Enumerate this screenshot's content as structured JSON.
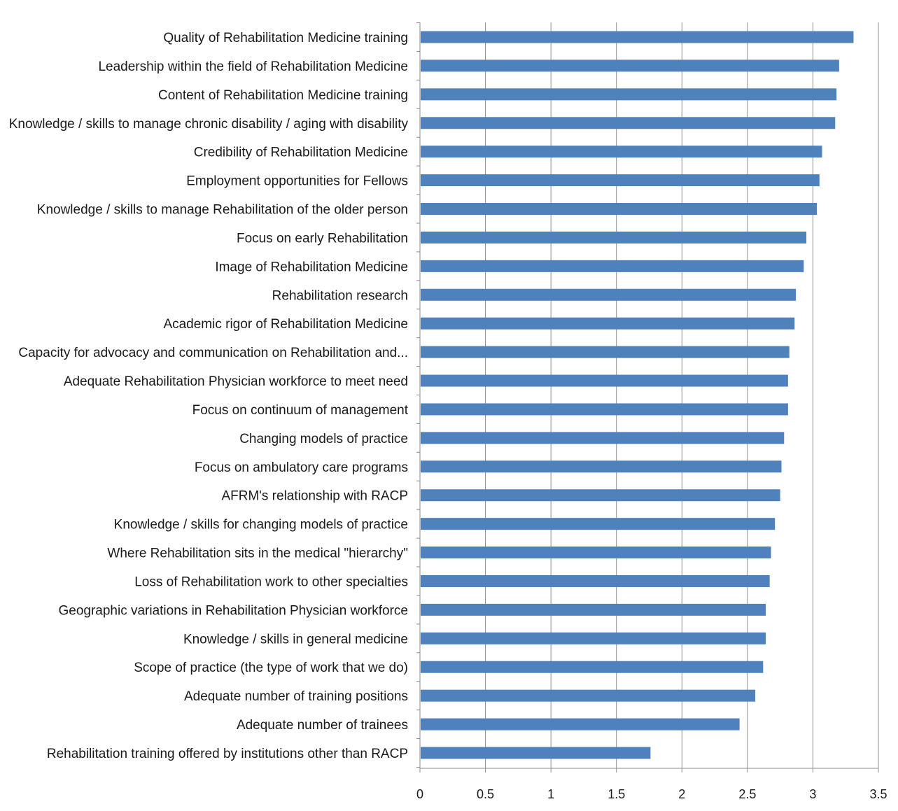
{
  "chart_data": {
    "type": "bar",
    "orientation": "horizontal",
    "title": "",
    "xlabel": "",
    "ylabel": "",
    "xlim": [
      0,
      3.5
    ],
    "x_ticks": [
      "0",
      "0.5",
      "1",
      "1.5",
      "2",
      "2.5",
      "3",
      "3.5"
    ],
    "grid": true,
    "legend": "none",
    "bar_color": "#4F81BD",
    "categories": [
      "Quality of Rehabilitation Medicine training",
      "Leadership within the field of Rehabilitation Medicine",
      "Content of Rehabilitation Medicine training",
      "Knowledge / skills to manage chronic disability / aging with disability",
      "Credibility of Rehabilitation Medicine",
      "Employment opportunities for Fellows",
      "Knowledge / skills to manage Rehabilitation of the older person",
      "Focus on early Rehabilitation",
      "Image of Rehabilitation Medicine",
      "Rehabilitation research",
      "Academic rigor of Rehabilitation Medicine",
      "Capacity for advocacy and communication on Rehabilitation and...",
      "Adequate Rehabilitation Physician workforce to meet need",
      "Focus on continuum of management",
      "Changing models of practice",
      "Focus on ambulatory care programs",
      "AFRM's relationship with RACP",
      "Knowledge / skills for changing models of practice",
      "Where Rehabilitation sits in the medical \"hierarchy\"",
      "Loss of Rehabilitation work to other specialties",
      "Geographic variations in Rehabilitation Physician workforce",
      "Knowledge / skills in general medicine",
      "Scope of practice (the type of work that we do)",
      "Adequate number of training positions",
      "Adequate number of trainees",
      "Rehabilitation training offered by institutions other than RACP"
    ],
    "values": [
      3.31,
      3.2,
      3.18,
      3.17,
      3.07,
      3.05,
      3.03,
      2.95,
      2.93,
      2.87,
      2.86,
      2.82,
      2.81,
      2.81,
      2.78,
      2.76,
      2.75,
      2.71,
      2.68,
      2.67,
      2.64,
      2.64,
      2.62,
      2.56,
      2.44,
      1.76
    ]
  }
}
